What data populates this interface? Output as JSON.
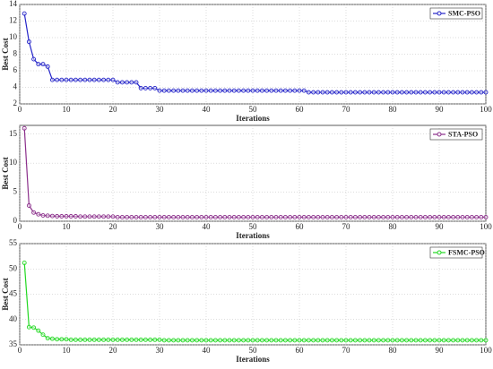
{
  "chart_data": [
    {
      "type": "line",
      "xlabel": "Iterations",
      "ylabel": "Best Cost",
      "grid": true,
      "legend": "upper right",
      "xlim": [
        0,
        100
      ],
      "xticks": [
        0,
        10,
        20,
        30,
        40,
        50,
        60,
        70,
        80,
        90,
        100
      ],
      "ylim": [
        2,
        14
      ],
      "yticks": [
        2,
        4,
        6,
        8,
        10,
        12,
        14
      ],
      "x": [
        1,
        2,
        3,
        4,
        5,
        6,
        7,
        8,
        9,
        10,
        11,
        12,
        13,
        14,
        15,
        16,
        17,
        18,
        19,
        20,
        21,
        22,
        23,
        24,
        25,
        26,
        27,
        28,
        29,
        30,
        31,
        32,
        33,
        34,
        35,
        36,
        37,
        38,
        39,
        40,
        41,
        42,
        43,
        44,
        45,
        46,
        47,
        48,
        49,
        50,
        51,
        52,
        53,
        54,
        55,
        56,
        57,
        58,
        59,
        60,
        61,
        62,
        63,
        64,
        65,
        66,
        67,
        68,
        69,
        70,
        71,
        72,
        73,
        74,
        75,
        76,
        77,
        78,
        79,
        80,
        81,
        82,
        83,
        84,
        85,
        86,
        87,
        88,
        89,
        90,
        91,
        92,
        93,
        94,
        95,
        96,
        97,
        98,
        99,
        100
      ],
      "series": [
        {
          "name": "SMC-PSO",
          "color": "#2424c8",
          "values": [
            12.9,
            9.5,
            7.4,
            6.8,
            6.8,
            6.5,
            4.9,
            4.9,
            4.9,
            4.9,
            4.9,
            4.9,
            4.9,
            4.9,
            4.9,
            4.9,
            4.9,
            4.9,
            4.9,
            4.9,
            4.6,
            4.6,
            4.6,
            4.6,
            4.6,
            3.9,
            3.9,
            3.9,
            3.9,
            3.6,
            3.6,
            3.6,
            3.6,
            3.6,
            3.6,
            3.6,
            3.6,
            3.6,
            3.6,
            3.6,
            3.6,
            3.6,
            3.6,
            3.6,
            3.6,
            3.6,
            3.6,
            3.6,
            3.6,
            3.6,
            3.6,
            3.6,
            3.6,
            3.6,
            3.6,
            3.6,
            3.6,
            3.6,
            3.6,
            3.6,
            3.6,
            3.4,
            3.4,
            3.4,
            3.4,
            3.4,
            3.4,
            3.4,
            3.4,
            3.4,
            3.4,
            3.4,
            3.4,
            3.4,
            3.4,
            3.4,
            3.4,
            3.4,
            3.4,
            3.4,
            3.4,
            3.4,
            3.4,
            3.4,
            3.4,
            3.4,
            3.4,
            3.4,
            3.4,
            3.4,
            3.4,
            3.4,
            3.4,
            3.4,
            3.4,
            3.4,
            3.4,
            3.4,
            3.4,
            3.4
          ]
        }
      ]
    },
    {
      "type": "line",
      "xlabel": "Iterations",
      "ylabel": "Best Cost",
      "grid": true,
      "legend": "upper right",
      "xlim": [
        0,
        100
      ],
      "xticks": [
        0,
        10,
        20,
        30,
        40,
        50,
        60,
        70,
        80,
        90,
        100
      ],
      "ylim": [
        0,
        16.5
      ],
      "yticks": [
        0,
        5,
        10,
        15
      ],
      "x": [
        1,
        2,
        3,
        4,
        5,
        6,
        7,
        8,
        9,
        10,
        11,
        12,
        13,
        14,
        15,
        16,
        17,
        18,
        19,
        20,
        21,
        22,
        23,
        24,
        25,
        26,
        27,
        28,
        29,
        30,
        31,
        32,
        33,
        34,
        35,
        36,
        37,
        38,
        39,
        40,
        41,
        42,
        43,
        44,
        45,
        46,
        47,
        48,
        49,
        50,
        51,
        52,
        53,
        54,
        55,
        56,
        57,
        58,
        59,
        60,
        61,
        62,
        63,
        64,
        65,
        66,
        67,
        68,
        69,
        70,
        71,
        72,
        73,
        74,
        75,
        76,
        77,
        78,
        79,
        80,
        81,
        82,
        83,
        84,
        85,
        86,
        87,
        88,
        89,
        90,
        91,
        92,
        93,
        94,
        95,
        96,
        97,
        98,
        99,
        100
      ],
      "series": [
        {
          "name": "STA-PSO",
          "color": "#8b2f8b",
          "values": [
            16,
            2.7,
            1.5,
            1.2,
            1.0,
            0.95,
            0.9,
            0.85,
            0.85,
            0.85,
            0.85,
            0.85,
            0.8,
            0.8,
            0.8,
            0.8,
            0.8,
            0.8,
            0.8,
            0.8,
            0.7,
            0.7,
            0.7,
            0.7,
            0.7,
            0.7,
            0.7,
            0.7,
            0.7,
            0.7,
            0.7,
            0.7,
            0.7,
            0.7,
            0.7,
            0.7,
            0.7,
            0.7,
            0.7,
            0.7,
            0.7,
            0.7,
            0.7,
            0.7,
            0.7,
            0.7,
            0.7,
            0.7,
            0.7,
            0.7,
            0.7,
            0.7,
            0.7,
            0.7,
            0.7,
            0.7,
            0.7,
            0.7,
            0.7,
            0.7,
            0.7,
            0.7,
            0.7,
            0.7,
            0.7,
            0.7,
            0.7,
            0.7,
            0.7,
            0.7,
            0.7,
            0.7,
            0.7,
            0.7,
            0.7,
            0.7,
            0.7,
            0.7,
            0.7,
            0.7,
            0.7,
            0.7,
            0.7,
            0.7,
            0.7,
            0.7,
            0.7,
            0.7,
            0.7,
            0.7,
            0.7,
            0.7,
            0.7,
            0.7,
            0.7,
            0.7,
            0.7,
            0.7,
            0.7,
            0.7
          ]
        }
      ]
    },
    {
      "type": "line",
      "xlabel": "Iterations",
      "ylabel": "Best Cost",
      "grid": true,
      "legend": "upper right",
      "xlim": [
        0,
        100
      ],
      "xticks": [
        0,
        10,
        20,
        30,
        40,
        50,
        60,
        70,
        80,
        90,
        100
      ],
      "ylim": [
        35,
        55
      ],
      "yticks": [
        35,
        40,
        45,
        50,
        55
      ],
      "x": [
        1,
        2,
        3,
        4,
        5,
        6,
        7,
        8,
        9,
        10,
        11,
        12,
        13,
        14,
        15,
        16,
        17,
        18,
        19,
        20,
        21,
        22,
        23,
        24,
        25,
        26,
        27,
        28,
        29,
        30,
        31,
        32,
        33,
        34,
        35,
        36,
        37,
        38,
        39,
        40,
        41,
        42,
        43,
        44,
        45,
        46,
        47,
        48,
        49,
        50,
        51,
        52,
        53,
        54,
        55,
        56,
        57,
        58,
        59,
        60,
        61,
        62,
        63,
        64,
        65,
        66,
        67,
        68,
        69,
        70,
        71,
        72,
        73,
        74,
        75,
        76,
        77,
        78,
        79,
        80,
        81,
        82,
        83,
        84,
        85,
        86,
        87,
        88,
        89,
        90,
        91,
        92,
        93,
        94,
        95,
        96,
        97,
        98,
        99,
        100
      ],
      "series": [
        {
          "name": "FSMC-PSO",
          "color": "#22d822",
          "values": [
            51.2,
            38.5,
            38.4,
            37.8,
            37.0,
            36.3,
            36.2,
            36.1,
            36.1,
            36.1,
            36.0,
            36.0,
            36.0,
            36.0,
            36.0,
            36.0,
            36.0,
            36.0,
            36.0,
            36.0,
            36.0,
            36.0,
            36.0,
            36.0,
            36.0,
            36.0,
            36.0,
            36.0,
            36.0,
            36.0,
            35.9,
            35.9,
            35.9,
            35.9,
            35.9,
            35.9,
            35.9,
            35.9,
            35.9,
            35.9,
            35.9,
            35.9,
            35.9,
            35.9,
            35.9,
            35.9,
            35.9,
            35.9,
            35.9,
            35.9,
            35.9,
            35.9,
            35.9,
            35.9,
            35.9,
            35.9,
            35.9,
            35.9,
            35.9,
            35.9,
            35.9,
            35.9,
            35.9,
            35.9,
            35.9,
            35.9,
            35.9,
            35.9,
            35.9,
            35.9,
            35.9,
            35.9,
            35.9,
            35.9,
            35.9,
            35.9,
            35.9,
            35.9,
            35.9,
            35.9,
            35.9,
            35.9,
            35.9,
            35.9,
            35.9,
            35.9,
            35.9,
            35.9,
            35.9,
            35.9,
            35.9,
            35.9,
            35.9,
            35.9,
            35.9,
            35.9,
            35.9,
            35.9,
            35.9,
            35.9
          ]
        }
      ]
    }
  ]
}
